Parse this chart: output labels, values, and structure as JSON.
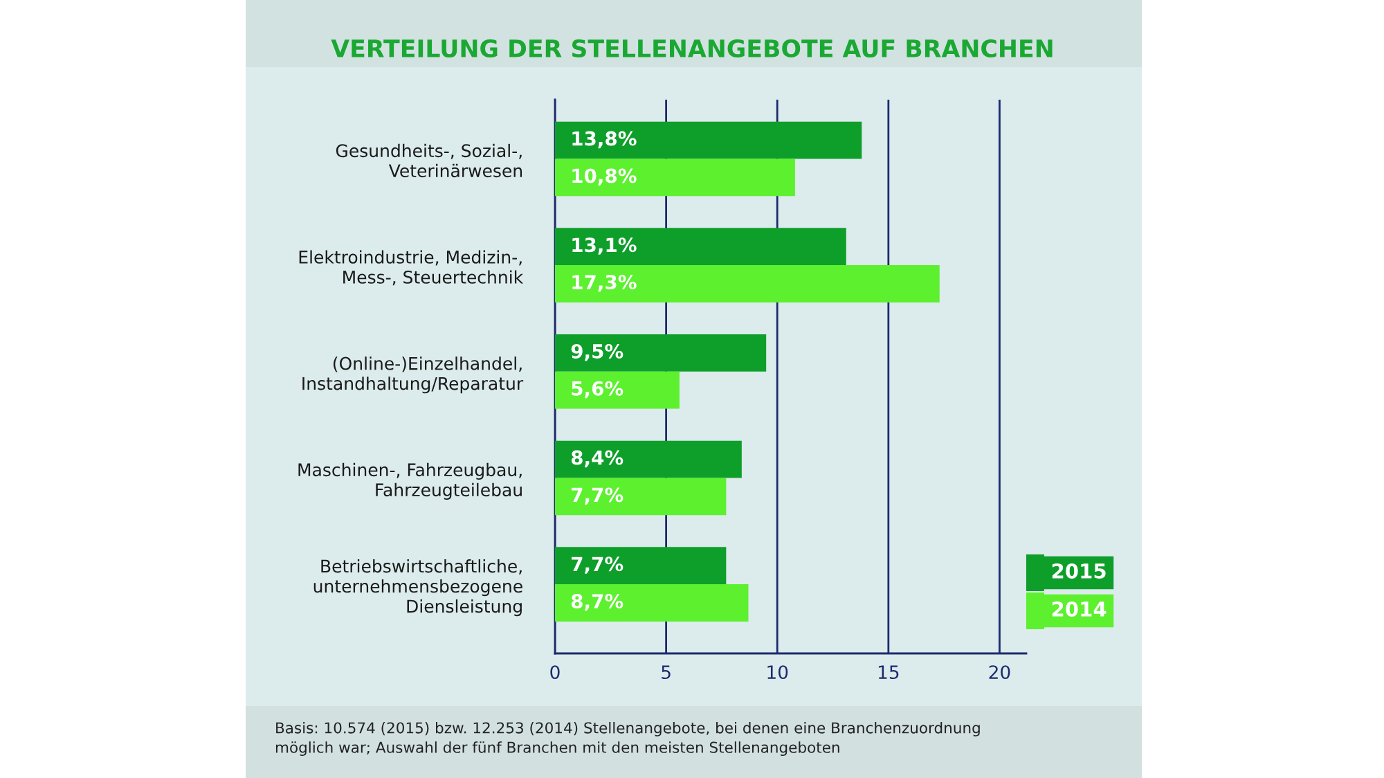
{
  "chart_data": {
    "type": "bar",
    "orientation": "horizontal",
    "title": "VERTEILUNG DER STELLENANGEBOTE AUF BRANCHEN",
    "categories": [
      "Gesundheits-, Sozial-,\nVeterinärwesen",
      "Elektroindustrie, Medizin-,\nMess-, Steuertechnik",
      "(Online-)Einzelhandel,\nInstandhaltung/Reparatur",
      "Maschinen-, Fahrzeugbau,\nFahrzeugteilebau",
      "Betriebswirtschaftliche,\nunternehmensbezogene\nDiensleistung"
    ],
    "series": [
      {
        "name": "2015",
        "color": "#0e9f2b",
        "values": [
          13.8,
          13.1,
          9.5,
          8.4,
          7.7
        ],
        "value_labels": [
          "13,8%",
          "13,1%",
          "9,5%",
          "8,4%",
          "7,7%"
        ]
      },
      {
        "name": "2014",
        "color": "#5cf02f",
        "values": [
          10.8,
          17.3,
          5.6,
          7.7,
          8.7
        ],
        "value_labels": [
          "10,8%",
          "17,3%",
          "5,6%",
          "7,7%",
          "8,7%"
        ]
      }
    ],
    "xlim": [
      0,
      21.2
    ],
    "xticks": [
      0,
      5,
      10,
      15,
      20
    ],
    "grid": "x",
    "legend": "bottom right",
    "annotations": [
      "Basis: 10.574 (2015) bzw. 12.253 (2014) Stellenangebote, bei denen eine Branchenzuordnung\nmöglich war; Auswahl der fünf Branchen mit den meisten Stellenangeboten"
    ]
  }
}
